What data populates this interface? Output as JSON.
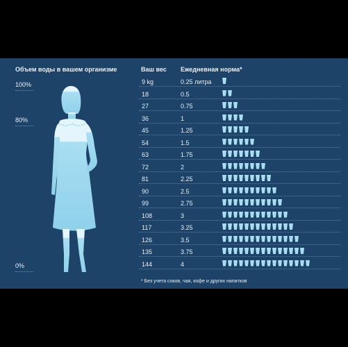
{
  "left_panel": {
    "title": "Объем воды в вашем организме",
    "scale": [
      "100%",
      "80%",
      "0%"
    ]
  },
  "table": {
    "col_weight": "Ваш вес",
    "col_norm": "Ежедневная норма*",
    "rows": [
      {
        "weight": "9 kg",
        "norm": "0.25 литра",
        "cups": 1
      },
      {
        "weight": "18",
        "norm": "0.5",
        "cups": 2
      },
      {
        "weight": "27",
        "norm": "0.75",
        "cups": 3
      },
      {
        "weight": "36",
        "norm": "1",
        "cups": 4
      },
      {
        "weight": "45",
        "norm": "1.25",
        "cups": 5
      },
      {
        "weight": "54",
        "norm": "1.5",
        "cups": 6
      },
      {
        "weight": "63",
        "norm": "1.75",
        "cups": 7
      },
      {
        "weight": "72",
        "norm": "2",
        "cups": 8
      },
      {
        "weight": "81",
        "norm": "2.25",
        "cups": 9
      },
      {
        "weight": "90",
        "norm": "2.5",
        "cups": 10
      },
      {
        "weight": "99",
        "norm": "2.75",
        "cups": 11
      },
      {
        "weight": "108",
        "norm": "3",
        "cups": 12
      },
      {
        "weight": "117",
        "norm": "3.25",
        "cups": 13
      },
      {
        "weight": "126",
        "norm": "3.5",
        "cups": 14
      },
      {
        "weight": "135",
        "norm": "3.75",
        "cups": 15
      },
      {
        "weight": "144",
        "norm": "4",
        "cups": 16
      }
    ]
  },
  "footnote": "* Без учета соков, чая, кофе и других напитков",
  "colors": {
    "background": "#1d4368",
    "water": "#a9def2",
    "silhouette_top": "#e4f6fb",
    "text": "#e9f1f6"
  }
}
